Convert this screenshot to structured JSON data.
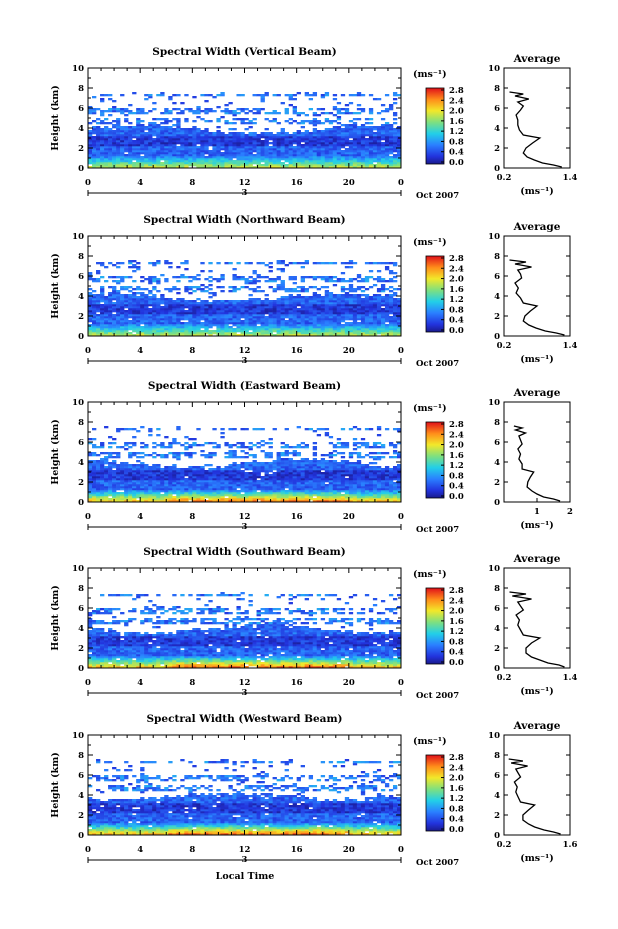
{
  "chart_data": {
    "type": "heatmap",
    "common": {
      "ylabel": "Height (km)",
      "y_ticks": [
        "0",
        "2",
        "4",
        "6",
        "8",
        "10"
      ],
      "ylim": [
        0,
        10
      ],
      "x_ticks": [
        "0",
        "4",
        "8",
        "12",
        "16",
        "20",
        "0"
      ],
      "xlim": [
        0,
        24
      ],
      "day_label": "3",
      "date_label": "Oct 2007",
      "colorbar_unit": "(ms⁻¹)",
      "colorbar_ticks": [
        "0.0",
        "0.4",
        "0.8",
        "1.2",
        "1.6",
        "2.0",
        "2.4",
        "2.8"
      ],
      "colorbar_range": [
        0,
        2.8
      ],
      "side_title": "Average",
      "side_xlabel": "(ms⁻¹)",
      "side_y_ticks": [
        "0",
        "2",
        "4",
        "6",
        "8",
        "10"
      ],
      "xlabel": "Local Time"
    },
    "panels": [
      {
        "title": "Spectral Width (Vertical Beam)",
        "side_xticks": [
          "0.2",
          "1.4"
        ],
        "side_xlim": [
          0.2,
          1.4
        ],
        "avg_profile": {
          "height": [
            0.1,
            0.3,
            0.5,
            0.8,
            1.1,
            1.5,
            2.0,
            2.5,
            3.0,
            3.3,
            3.8,
            4.3,
            4.8,
            5.3,
            5.8,
            6.2,
            6.6,
            6.9,
            7.2,
            7.4,
            7.6
          ],
          "value": [
            1.25,
            1.1,
            0.9,
            0.75,
            0.62,
            0.55,
            0.6,
            0.72,
            0.85,
            0.55,
            0.48,
            0.45,
            0.45,
            0.42,
            0.5,
            0.55,
            0.45,
            0.65,
            0.4,
            0.55,
            0.3
          ]
        }
      },
      {
        "title": "Spectral Width (Northward Beam)",
        "side_xticks": [
          "0.2",
          "1.4"
        ],
        "side_xlim": [
          0.2,
          1.4
        ],
        "avg_profile": {
          "height": [
            0.1,
            0.3,
            0.5,
            0.8,
            1.1,
            1.5,
            2.0,
            2.5,
            3.0,
            3.3,
            3.8,
            4.3,
            4.8,
            5.3,
            5.8,
            6.2,
            6.6,
            6.9,
            7.2,
            7.4,
            7.6
          ],
          "value": [
            1.3,
            1.15,
            0.95,
            0.78,
            0.65,
            0.55,
            0.58,
            0.68,
            0.8,
            0.55,
            0.5,
            0.42,
            0.46,
            0.4,
            0.52,
            0.5,
            0.45,
            0.7,
            0.4,
            0.6,
            0.3
          ]
        }
      },
      {
        "title": "Spectral Width (Eastward Beam)",
        "side_xticks": [
          "1",
          "2"
        ],
        "side_xlim": [
          0,
          2
        ],
        "avg_profile": {
          "height": [
            0.1,
            0.3,
            0.5,
            0.8,
            1.1,
            1.5,
            2.0,
            2.5,
            3.0,
            3.3,
            3.8,
            4.3,
            4.8,
            5.3,
            5.8,
            6.2,
            6.6,
            6.9,
            7.2,
            7.4,
            7.6
          ],
          "value": [
            1.7,
            1.5,
            1.2,
            1.0,
            0.85,
            0.7,
            0.72,
            0.8,
            0.9,
            0.55,
            0.55,
            0.45,
            0.5,
            0.42,
            0.55,
            0.5,
            0.45,
            0.65,
            0.35,
            0.55,
            0.3
          ]
        }
      },
      {
        "title": "Spectral Width (Southward Beam)",
        "side_xticks": [
          "0.2",
          "1.4"
        ],
        "side_xlim": [
          0.2,
          1.4
        ],
        "avg_profile": {
          "height": [
            0.1,
            0.3,
            0.5,
            0.8,
            1.1,
            1.5,
            2.0,
            2.5,
            3.0,
            3.3,
            3.8,
            4.3,
            4.8,
            5.3,
            5.8,
            6.2,
            6.6,
            6.9,
            7.2,
            7.4,
            7.6
          ],
          "value": [
            1.3,
            1.2,
            1.0,
            0.85,
            0.7,
            0.6,
            0.6,
            0.7,
            0.85,
            0.55,
            0.5,
            0.45,
            0.48,
            0.42,
            0.55,
            0.5,
            0.45,
            0.7,
            0.35,
            0.6,
            0.3
          ]
        }
      },
      {
        "title": "Spectral Width (Westward Beam)",
        "side_xticks": [
          "0.2",
          "1.6"
        ],
        "side_xlim": [
          0.2,
          1.6
        ],
        "avg_profile": {
          "height": [
            0.1,
            0.3,
            0.5,
            0.8,
            1.1,
            1.5,
            2.0,
            2.5,
            3.0,
            3.3,
            3.8,
            4.3,
            4.8,
            5.3,
            5.8,
            6.2,
            6.6,
            6.9,
            7.2,
            7.4,
            7.6
          ],
          "value": [
            1.4,
            1.25,
            1.05,
            0.85,
            0.72,
            0.6,
            0.6,
            0.72,
            0.85,
            0.55,
            0.5,
            0.45,
            0.48,
            0.42,
            0.55,
            0.5,
            0.45,
            0.7,
            0.35,
            0.6,
            0.3
          ]
        }
      }
    ]
  }
}
